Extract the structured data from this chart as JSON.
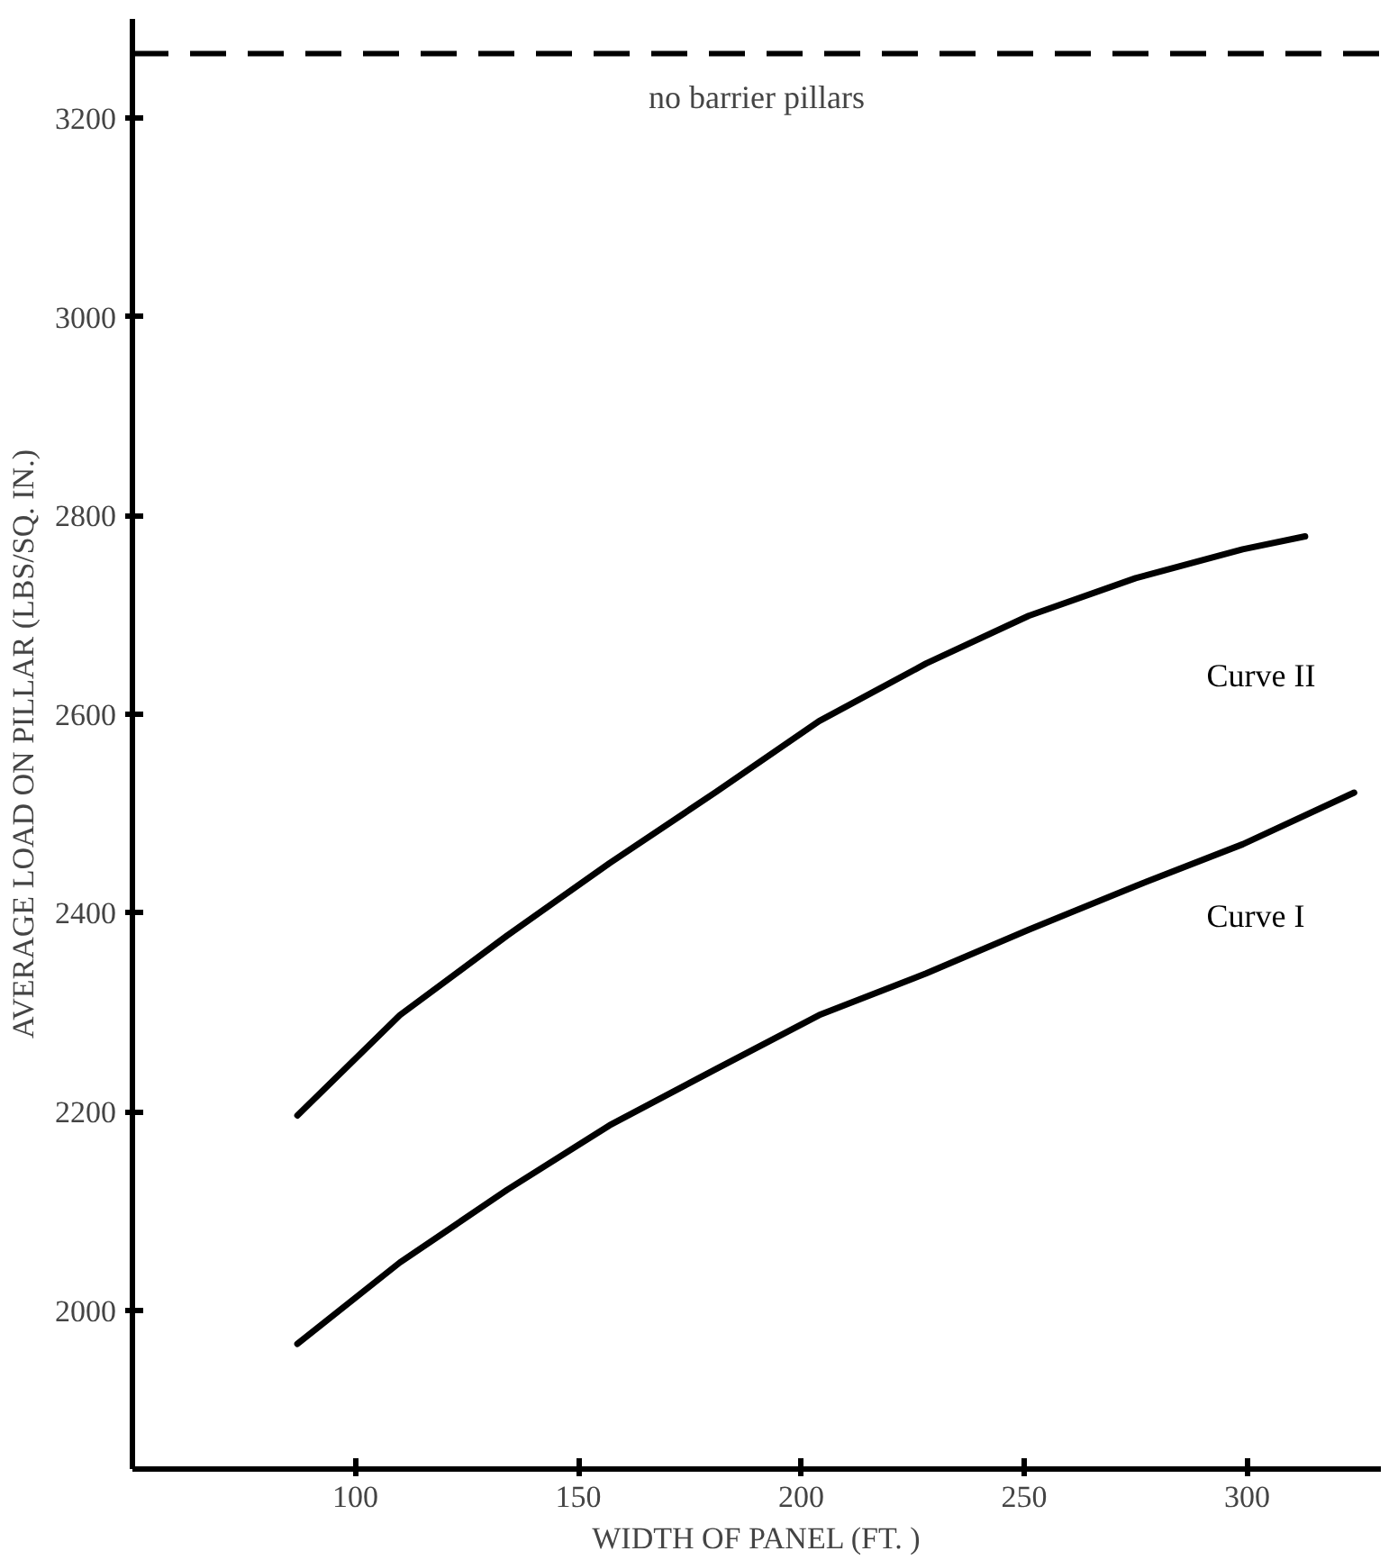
{
  "chart_data": {
    "type": "line",
    "xlabel": "WIDTH OF PANEL (FT. )",
    "ylabel": "AVERAGE LOAD ON PILLAR (LBS/SQ. IN.)",
    "xlim": [
      50,
      330
    ],
    "ylim": [
      1840,
      3300
    ],
    "xticks": [
      100,
      150,
      200,
      250,
      300
    ],
    "yticks": [
      2000,
      2200,
      2400,
      2600,
      2800,
      3000,
      3200
    ],
    "grid": false,
    "legend": false,
    "marker": "none",
    "line_style": "solid",
    "series": [
      {
        "name": "Curve II",
        "color": "#000000",
        "x": [
          87,
          110,
          134,
          157,
          181,
          204,
          228,
          251,
          275,
          299,
          313
        ],
        "values": [
          2196,
          2297,
          2377,
          2450,
          2522,
          2593,
          2651,
          2699,
          2737,
          2766,
          2779
        ]
      },
      {
        "name": "Curve I",
        "color": "#000000",
        "x": [
          87,
          110,
          134,
          157,
          181,
          204,
          228,
          251,
          275,
          299,
          324
        ],
        "values": [
          1966,
          2048,
          2121,
          2186,
          2243,
          2297,
          2339,
          2383,
          2427,
          2469,
          2521
        ]
      }
    ],
    "ref_lines": [
      {
        "axis": "y",
        "value": 3265,
        "label": "no barrier pillars",
        "line_style": "dashed",
        "color": "#000000"
      }
    ]
  }
}
